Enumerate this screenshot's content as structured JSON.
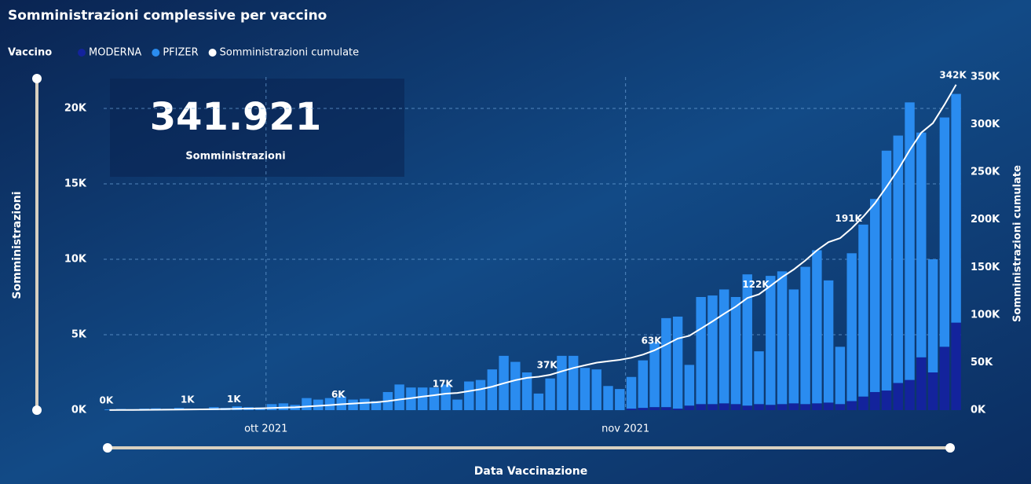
{
  "chart_data": {
    "type": "bar",
    "title": "Somministrazioni complessive per vaccino",
    "legend_title": "Vaccino",
    "legend": "top-left",
    "stacked": true,
    "grid": true,
    "card": {
      "value": "341.921",
      "label": "Somministrazioni"
    },
    "x_label": "Data Vaccinazione",
    "y_label": "Somministrazioni",
    "y2_label": "Somministrazioni cumulate",
    "categories": [
      null,
      null,
      null,
      null,
      null,
      null,
      null,
      null,
      null,
      null,
      null,
      null,
      null,
      null,
      "ott 2021",
      null,
      null,
      null,
      null,
      null,
      null,
      null,
      null,
      null,
      null,
      null,
      null,
      null,
      null,
      null,
      null,
      null,
      null,
      null,
      null,
      null,
      null,
      null,
      null,
      null,
      null,
      null,
      null,
      null,
      null,
      "nov 2021",
      null,
      null,
      null,
      null,
      null,
      null,
      null,
      null,
      null,
      null,
      null,
      null,
      null,
      null,
      null,
      null,
      null,
      null,
      null,
      null,
      null,
      null,
      null,
      null,
      null,
      null,
      null,
      null
    ],
    "ylim": [
      0,
      22083
    ],
    "yticks": [
      {
        "value": 0,
        "label": "0K"
      },
      {
        "value": 5000,
        "label": "5K"
      },
      {
        "value": 10000,
        "label": "10K"
      },
      {
        "value": 15000,
        "label": "15K"
      },
      {
        "value": 20000,
        "label": "20K"
      }
    ],
    "y2lim": [
      0,
      350000
    ],
    "y2ticks": [
      {
        "value": 0,
        "label": "0K"
      },
      {
        "value": 50000,
        "label": "50K"
      },
      {
        "value": 100000,
        "label": "100K"
      },
      {
        "value": 150000,
        "label": "150K"
      },
      {
        "value": 200000,
        "label": "200K"
      },
      {
        "value": 250000,
        "label": "250K"
      },
      {
        "value": 300000,
        "label": "300K"
      },
      {
        "value": 350000,
        "label": "350K"
      }
    ],
    "series": [
      {
        "name": "MODERNA",
        "color": "#13239c",
        "values": [
          0,
          0,
          0,
          0,
          0,
          0,
          0,
          0,
          0,
          0,
          0,
          0,
          0,
          0,
          0,
          0,
          0,
          0,
          0,
          0,
          0,
          0,
          0,
          0,
          0,
          0,
          0,
          0,
          0,
          0,
          0,
          0,
          0,
          0,
          0,
          0,
          0,
          0,
          0,
          0,
          0,
          0,
          0,
          0,
          0,
          100,
          150,
          200,
          200,
          100,
          300,
          400,
          400,
          450,
          400,
          300,
          400,
          350,
          400,
          450,
          400,
          450,
          500,
          400,
          600,
          900,
          1200,
          1300,
          1800,
          2000,
          3500,
          2500,
          4200,
          5800
        ]
      },
      {
        "name": "PFIZER",
        "color": "#2a8cf0",
        "values": [
          50,
          80,
          60,
          100,
          120,
          90,
          150,
          100,
          80,
          200,
          150,
          250,
          200,
          180,
          400,
          450,
          350,
          800,
          700,
          800,
          900,
          700,
          750,
          600,
          1200,
          1700,
          1500,
          1500,
          1500,
          1700,
          700,
          1900,
          2000,
          2700,
          3600,
          3200,
          2500,
          1100,
          2100,
          3600,
          3600,
          2800,
          2700,
          1600,
          1400,
          2100,
          3150,
          4300,
          5900,
          6100,
          2700,
          7100,
          7200,
          7550,
          7100,
          8700,
          3500,
          8550,
          8800,
          7550,
          9100,
          10150,
          8100,
          3800,
          9800,
          11400,
          12800,
          15900,
          16400,
          18400,
          14900,
          7500,
          15200,
          15161
        ]
      },
      {
        "name": "Somministrazioni cumulate",
        "color": "#ffffff",
        "type": "line",
        "axis": "y2",
        "values": [
          50,
          130,
          190,
          290,
          410,
          500,
          650,
          750,
          830,
          1030,
          1180,
          1430,
          1630,
          1810,
          2210,
          2660,
          3010,
          3810,
          4510,
          5310,
          6210,
          6910,
          7660,
          8260,
          9460,
          11160,
          12660,
          14160,
          15660,
          17360,
          18060,
          19960,
          21960,
          24660,
          28260,
          31460,
          33960,
          35060,
          37160,
          40760,
          44360,
          47160,
          49860,
          51460,
          52860,
          55060,
          58360,
          62860,
          68960,
          75160,
          78160,
          85660,
          93260,
          101260,
          108760,
          117760,
          121660,
          130560,
          139760,
          147760,
          157260,
          167860,
          176460,
          180660,
          191060,
          203360,
          217360,
          234560,
          252760,
          273160,
          291560,
          301560,
          320960,
          341921
        ],
        "value_labels": [
          "0K",
          null,
          null,
          null,
          null,
          null,
          null,
          "1K",
          null,
          null,
          null,
          "1K",
          null,
          null,
          null,
          null,
          null,
          null,
          null,
          null,
          "6K",
          null,
          null,
          null,
          null,
          null,
          null,
          null,
          null,
          "17K",
          null,
          null,
          null,
          null,
          null,
          null,
          null,
          null,
          "37K",
          null,
          null,
          null,
          null,
          null,
          null,
          null,
          null,
          "63K",
          null,
          null,
          null,
          null,
          null,
          null,
          null,
          null,
          "122K",
          null,
          null,
          null,
          null,
          null,
          null,
          null,
          "191K",
          null,
          null,
          null,
          null,
          null,
          null,
          null,
          null,
          "342K"
        ]
      }
    ]
  }
}
